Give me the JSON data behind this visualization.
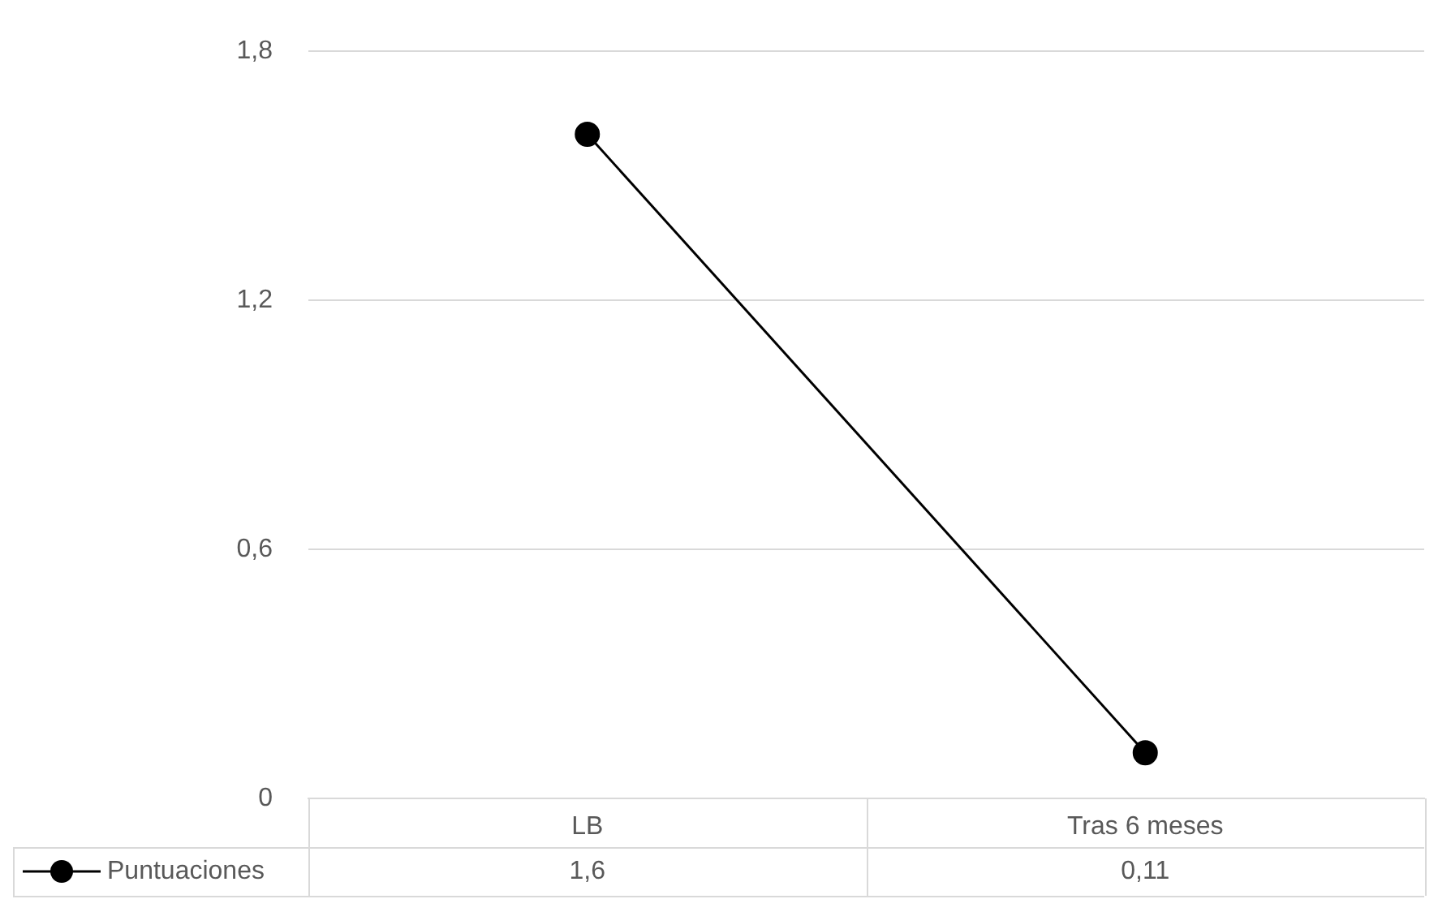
{
  "chart_data": {
    "type": "line",
    "categories": [
      "LB",
      "Tras 6 meses"
    ],
    "series": [
      {
        "name": "Puntuaciones",
        "color": "#000000",
        "values": [
          1.6,
          0.11
        ],
        "value_labels": [
          "1,6",
          "0,11"
        ]
      }
    ],
    "ylim": [
      0,
      1.8
    ],
    "yticks": [
      {
        "value": 0,
        "label": "0"
      },
      {
        "value": 0.6,
        "label": "0,6"
      },
      {
        "value": 1.2,
        "label": "1,2"
      },
      {
        "value": 1.8,
        "label": "1,8"
      }
    ],
    "grid": "y",
    "legend": "bottom left",
    "marker": "circle",
    "line_style": "solid",
    "data_labels": true
  }
}
